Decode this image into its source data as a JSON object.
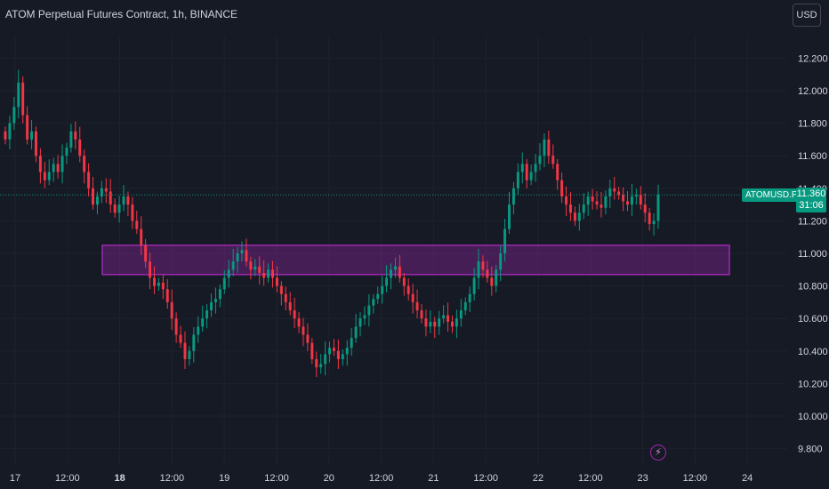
{
  "header": {
    "title": "ATOM Perpetual Futures Contract, 1h, BINANCE",
    "currency_button": "USD"
  },
  "price_scale": {
    "ticks": [
      "12.200",
      "12.000",
      "11.800",
      "11.600",
      "11.400",
      "11.200",
      "11.000",
      "10.800",
      "10.600",
      "10.400",
      "10.200",
      "10.000",
      "9.800"
    ]
  },
  "last_price": {
    "symbol": "ATOMUSD.P",
    "value": "11.360",
    "countdown": "31:06"
  },
  "time_axis": {
    "labels": [
      "17",
      "12:00",
      "18",
      "12:00",
      "19",
      "12:00",
      "20",
      "12:00",
      "21",
      "12:00",
      "22",
      "12:00",
      "23",
      "12:00",
      "24"
    ]
  },
  "alert_icon": "lightning-icon",
  "colors": {
    "background": "#161a25",
    "up": "#089981",
    "down": "#f23645",
    "zone_border": "#9c27b0",
    "zone_fill": "rgba(156,39,176,0.35)",
    "last_price_line": "#089981"
  },
  "chart_data": {
    "type": "candlestick",
    "interval": "1h",
    "ylim": [
      9.75,
      12.32
    ],
    "y_ticks": [
      12.2,
      12.0,
      11.8,
      11.6,
      11.4,
      11.2,
      11.0,
      10.8,
      10.6,
      10.4,
      10.2,
      10.0,
      9.8
    ],
    "last_price": 11.36,
    "support_zone": {
      "low": 10.87,
      "high": 11.05
    },
    "x_labels": [
      "17",
      "12:00",
      "18",
      "12:00",
      "19",
      "12:00",
      "20",
      "12:00",
      "21",
      "12:00",
      "22",
      "12:00",
      "23",
      "12:00",
      "24"
    ],
    "series": [
      {
        "name": "close",
        "values": [
          11.7,
          11.8,
          11.9,
          12.05,
          11.85,
          11.7,
          11.75,
          11.6,
          11.5,
          11.45,
          11.5,
          11.55,
          11.5,
          11.6,
          11.65,
          11.75,
          11.7,
          11.6,
          11.5,
          11.4,
          11.3,
          11.35,
          11.4,
          11.38,
          11.3,
          11.25,
          11.3,
          11.35,
          11.3,
          11.2,
          11.15,
          11.05,
          10.95,
          10.85,
          10.8,
          10.82,
          10.78,
          10.7,
          10.6,
          10.5,
          10.45,
          10.35,
          10.4,
          10.5,
          10.55,
          10.6,
          10.65,
          10.7,
          10.72,
          10.78,
          10.85,
          10.9,
          10.95,
          11.0,
          11.02,
          10.95,
          10.9,
          10.92,
          10.88,
          10.85,
          10.9,
          10.85,
          10.8,
          10.75,
          10.7,
          10.65,
          10.6,
          10.55,
          10.5,
          10.45,
          10.35,
          10.3,
          10.32,
          10.38,
          10.42,
          10.4,
          10.35,
          10.38,
          10.42,
          10.48,
          10.55,
          10.6,
          10.62,
          10.68,
          10.72,
          10.75,
          10.8,
          10.85,
          10.9,
          10.92,
          10.85,
          10.8,
          10.75,
          10.7,
          10.65,
          10.6,
          10.55,
          10.58,
          10.55,
          10.6,
          10.62,
          10.58,
          10.55,
          10.6,
          10.65,
          10.7,
          10.75,
          10.85,
          10.95,
          10.9,
          10.85,
          10.8,
          10.9,
          11.0,
          11.15,
          11.3,
          11.4,
          11.5,
          11.55,
          11.45,
          11.5,
          11.55,
          11.6,
          11.7,
          11.6,
          11.55,
          11.45,
          11.35,
          11.3,
          11.25,
          11.2,
          11.25,
          11.3,
          11.35,
          11.32,
          11.3,
          11.28,
          11.35,
          11.4,
          11.38,
          11.36,
          11.32,
          11.3,
          11.35,
          11.36,
          11.3,
          11.25,
          11.18,
          11.2,
          11.36
        ]
      }
    ]
  }
}
